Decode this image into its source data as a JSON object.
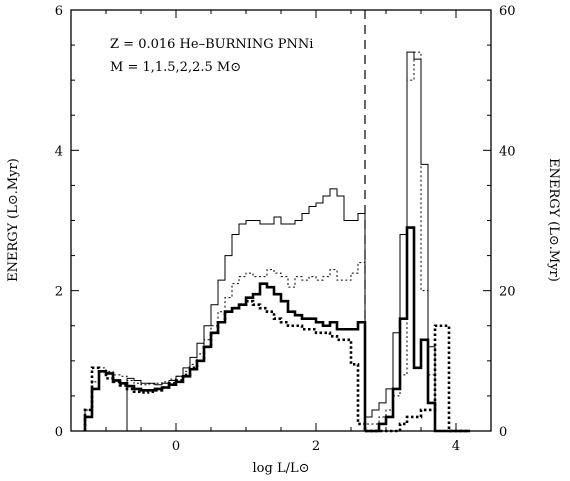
{
  "chart_data": {
    "type": "line",
    "subtype": "step-histogram",
    "annotation_line1": "Z = 0.016  He–BURNING PNNi",
    "annotation_line2": "M = 1,1.5,2,2.5 M⊙",
    "xlabel": "log L/L⊙",
    "ylabel_left": "ENERGY (L⊙.Myr)",
    "ylabel_right": "ENERGY (L⊙.Myr)",
    "xlim": [
      -1.5,
      4.5
    ],
    "ylim_left": [
      0,
      6
    ],
    "ylim_right": [
      0,
      60
    ],
    "x_ticks": [
      "0",
      "2",
      "4"
    ],
    "x_tick_values": [
      0,
      2,
      4
    ],
    "y_left_ticks": [
      "0",
      "2",
      "4",
      "6"
    ],
    "y_left_tick_values": [
      0,
      2,
      4,
      6
    ],
    "y_right_ticks": [
      "0",
      "20",
      "40",
      "60"
    ],
    "y_right_tick_values": [
      0,
      20,
      40,
      60
    ],
    "divider_x": 2.7,
    "scale_note": "x < 2.7 uses left axis, x > 2.7 uses right axis",
    "grid": false,
    "series": [
      {
        "style": "thin-solid",
        "left_x": [
          -1.3,
          -1.2,
          -1.1,
          -1.0,
          -0.9,
          -0.8,
          -0.7,
          -0.6,
          -0.5,
          -0.4,
          -0.3,
          -0.2,
          -0.1,
          0.0,
          0.1,
          0.2,
          0.3,
          0.4,
          0.5,
          0.6,
          0.7,
          0.8,
          0.9,
          1.0,
          1.1,
          1.2,
          1.3,
          1.4,
          1.5,
          1.6,
          1.7,
          1.8,
          1.9,
          2.0,
          2.1,
          2.2,
          2.3,
          2.4,
          2.5,
          2.6
        ],
        "left_y": [
          0.0,
          0.0,
          0.0,
          0.0,
          0.0,
          0.0,
          0.75,
          0.72,
          0.68,
          0.68,
          0.66,
          0.68,
          0.72,
          0.78,
          0.9,
          1.05,
          1.25,
          1.5,
          1.8,
          2.15,
          2.5,
          2.8,
          2.95,
          3.0,
          3.0,
          2.95,
          2.95,
          3.05,
          2.95,
          2.95,
          3.0,
          3.1,
          3.2,
          3.25,
          3.35,
          3.45,
          3.35,
          3.0,
          3.0,
          3.1
        ],
        "right_x": [
          2.7,
          2.8,
          2.9,
          3.0,
          3.1,
          3.2,
          3.3,
          3.4,
          3.5,
          3.6,
          3.7,
          3.8,
          3.9,
          4.0,
          4.1
        ],
        "right_y": [
          2,
          3,
          4,
          6,
          14,
          28,
          54,
          53,
          38,
          12,
          0,
          0,
          0,
          0,
          0
        ]
      },
      {
        "style": "thin-dotted",
        "left_x": [
          -1.3,
          -1.2,
          -1.1,
          -1.0,
          -0.9,
          -0.8,
          -0.7,
          -0.6,
          -0.5,
          -0.4,
          -0.3,
          -0.2,
          -0.1,
          0.0,
          0.1,
          0.2,
          0.3,
          0.4,
          0.5,
          0.6,
          0.7,
          0.8,
          0.9,
          1.0,
          1.1,
          1.2,
          1.3,
          1.4,
          1.5,
          1.6,
          1.7,
          1.8,
          1.9,
          2.0,
          2.1,
          2.2,
          2.3,
          2.4,
          2.5,
          2.6
        ],
        "left_y": [
          0.3,
          0.7,
          0.9,
          0.85,
          0.8,
          0.78,
          0.72,
          0.68,
          0.66,
          0.67,
          0.68,
          0.7,
          0.74,
          0.78,
          0.85,
          0.95,
          1.1,
          1.3,
          1.5,
          1.7,
          1.9,
          2.1,
          2.2,
          2.25,
          2.2,
          2.2,
          2.3,
          2.25,
          2.2,
          2.05,
          2.2,
          2.15,
          2.2,
          2.15,
          2.2,
          2.3,
          2.15,
          2.15,
          2.25,
          2.4
        ],
        "right_x": [
          2.7,
          2.8,
          2.9,
          3.0,
          3.1,
          3.2,
          3.3,
          3.4,
          3.5,
          3.6,
          3.7,
          3.8,
          3.9,
          4.0,
          4.1
        ],
        "right_y": [
          1,
          1,
          2,
          3,
          5,
          8,
          50,
          54,
          20,
          8,
          0,
          0,
          0,
          0,
          0
        ]
      },
      {
        "style": "thick-solid",
        "left_x": [
          -1.3,
          -1.2,
          -1.1,
          -1.0,
          -0.9,
          -0.8,
          -0.7,
          -0.6,
          -0.5,
          -0.4,
          -0.3,
          -0.2,
          -0.1,
          0.0,
          0.1,
          0.2,
          0.3,
          0.4,
          0.5,
          0.6,
          0.7,
          0.8,
          0.9,
          1.0,
          1.1,
          1.2,
          1.3,
          1.4,
          1.5,
          1.6,
          1.7,
          1.8,
          1.9,
          2.0,
          2.1,
          2.2,
          2.3,
          2.4,
          2.5,
          2.6
        ],
        "left_y": [
          0.2,
          0.6,
          0.85,
          0.82,
          0.72,
          0.68,
          0.64,
          0.6,
          0.58,
          0.58,
          0.6,
          0.62,
          0.66,
          0.7,
          0.78,
          0.88,
          1.0,
          1.2,
          1.4,
          1.55,
          1.7,
          1.75,
          1.8,
          1.9,
          1.95,
          2.1,
          2.05,
          1.95,
          1.85,
          1.7,
          1.65,
          1.6,
          1.6,
          1.55,
          1.5,
          1.55,
          1.45,
          1.45,
          1.45,
          1.55
        ],
        "right_x": [
          2.7,
          2.8,
          2.9,
          3.0,
          3.1,
          3.2,
          3.3,
          3.4,
          3.5,
          3.6,
          3.7,
          3.8,
          3.9,
          4.0,
          4.1
        ],
        "right_y": [
          0,
          0,
          1,
          2,
          6,
          16,
          29,
          9,
          13,
          4,
          0,
          0,
          0,
          0,
          0
        ]
      },
      {
        "style": "thick-dotted",
        "left_x": [
          -1.3,
          -1.2,
          -1.1,
          -1.0,
          -0.9,
          -0.8,
          -0.7,
          -0.6,
          -0.5,
          -0.4,
          -0.3,
          -0.2,
          -0.1,
          0.0,
          0.1,
          0.2,
          0.3,
          0.4,
          0.5,
          0.6,
          0.7,
          0.8,
          0.9,
          1.0,
          1.1,
          1.2,
          1.3,
          1.4,
          1.5,
          1.6,
          1.7,
          1.8,
          1.9,
          2.0,
          2.1,
          2.2,
          2.3,
          2.4,
          2.5,
          2.6
        ],
        "left_y": [
          0.3,
          0.9,
          0.85,
          0.75,
          0.7,
          0.65,
          0.6,
          0.56,
          0.55,
          0.56,
          0.58,
          0.62,
          0.68,
          0.72,
          0.8,
          0.9,
          1.0,
          1.2,
          1.4,
          1.55,
          1.7,
          1.75,
          1.8,
          1.85,
          1.8,
          1.75,
          1.7,
          1.6,
          1.55,
          1.5,
          1.5,
          1.45,
          1.45,
          1.4,
          1.4,
          1.35,
          1.3,
          1.3,
          0.95,
          0.1
        ],
        "right_x": [
          2.7,
          2.8,
          2.9,
          3.0,
          3.1,
          3.2,
          3.3,
          3.4,
          3.5,
          3.6,
          3.7,
          3.8,
          3.9,
          4.0,
          4.1
        ],
        "right_y": [
          0,
          0,
          0,
          0,
          0,
          1,
          2,
          2,
          3,
          3,
          15,
          15,
          0,
          0,
          0
        ]
      }
    ]
  }
}
